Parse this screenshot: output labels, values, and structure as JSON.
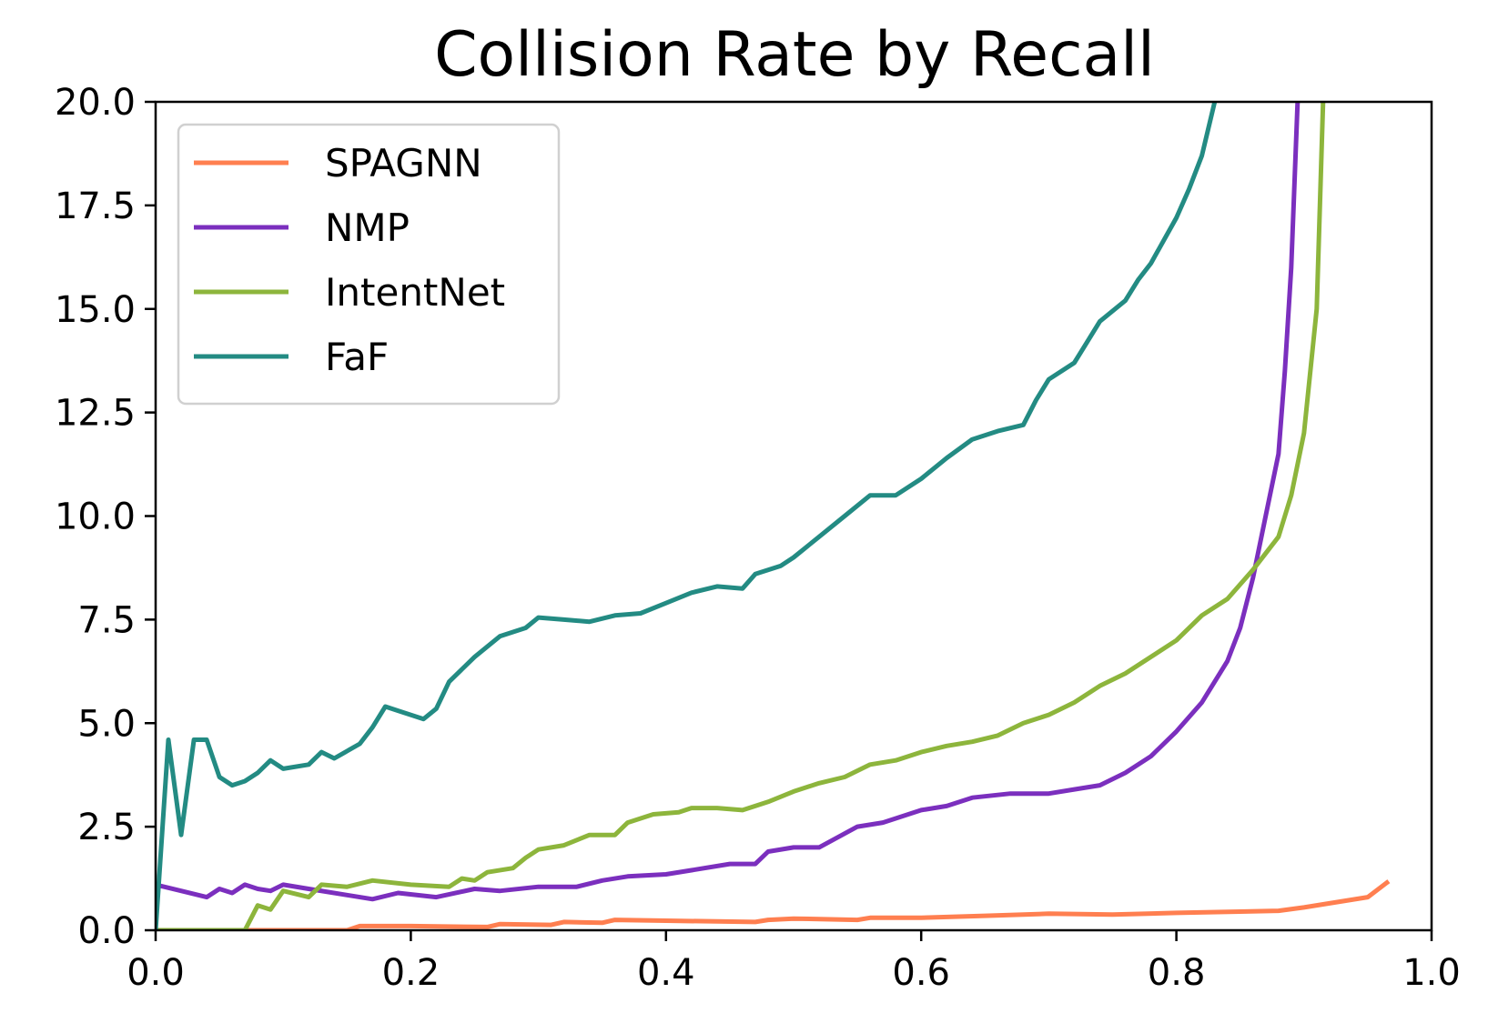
{
  "chart_data": {
    "type": "line",
    "title": "Collision Rate by Recall",
    "xlabel": "",
    "ylabel": "",
    "xlim": [
      0.0,
      1.0
    ],
    "ylim": [
      0.0,
      20.0
    ],
    "x_ticks": [
      0.0,
      0.2,
      0.4,
      0.6,
      0.8,
      1.0
    ],
    "x_tick_labels": [
      "0.0",
      "0.2",
      "0.4",
      "0.6",
      "0.8",
      "1.0"
    ],
    "y_ticks": [
      0.0,
      2.5,
      5.0,
      7.5,
      10.0,
      12.5,
      15.0,
      17.5,
      20.0
    ],
    "y_tick_labels": [
      "0.0",
      "2.5",
      "5.0",
      "7.5",
      "10.0",
      "12.5",
      "15.0",
      "17.5",
      "20.0"
    ],
    "grid": false,
    "legend_position": "top-left",
    "series": [
      {
        "name": "SPAGNN",
        "color": "#ff7f50",
        "points": [
          [
            0.0,
            0.0
          ],
          [
            0.15,
            0.0
          ],
          [
            0.16,
            0.1
          ],
          [
            0.2,
            0.1
          ],
          [
            0.26,
            0.08
          ],
          [
            0.27,
            0.15
          ],
          [
            0.31,
            0.13
          ],
          [
            0.32,
            0.2
          ],
          [
            0.35,
            0.18
          ],
          [
            0.36,
            0.25
          ],
          [
            0.4,
            0.23
          ],
          [
            0.47,
            0.2
          ],
          [
            0.48,
            0.25
          ],
          [
            0.5,
            0.28
          ],
          [
            0.55,
            0.25
          ],
          [
            0.56,
            0.3
          ],
          [
            0.6,
            0.3
          ],
          [
            0.65,
            0.35
          ],
          [
            0.7,
            0.4
          ],
          [
            0.75,
            0.38
          ],
          [
            0.8,
            0.42
          ],
          [
            0.85,
            0.45
          ],
          [
            0.88,
            0.47
          ],
          [
            0.9,
            0.55
          ],
          [
            0.92,
            0.65
          ],
          [
            0.95,
            0.8
          ],
          [
            0.965,
            1.15
          ]
        ]
      },
      {
        "name": "NMP",
        "color": "#7b2fbe",
        "points": [
          [
            0.0,
            1.1
          ],
          [
            0.02,
            0.95
          ],
          [
            0.04,
            0.8
          ],
          [
            0.05,
            1.0
          ],
          [
            0.06,
            0.9
          ],
          [
            0.07,
            1.1
          ],
          [
            0.08,
            1.0
          ],
          [
            0.09,
            0.95
          ],
          [
            0.1,
            1.1
          ],
          [
            0.12,
            1.0
          ],
          [
            0.15,
            0.85
          ],
          [
            0.17,
            0.75
          ],
          [
            0.19,
            0.9
          ],
          [
            0.22,
            0.8
          ],
          [
            0.25,
            1.0
          ],
          [
            0.27,
            0.95
          ],
          [
            0.3,
            1.05
          ],
          [
            0.33,
            1.05
          ],
          [
            0.35,
            1.2
          ],
          [
            0.37,
            1.3
          ],
          [
            0.4,
            1.35
          ],
          [
            0.42,
            1.45
          ],
          [
            0.45,
            1.6
          ],
          [
            0.47,
            1.6
          ],
          [
            0.48,
            1.9
          ],
          [
            0.5,
            2.0
          ],
          [
            0.52,
            2.0
          ],
          [
            0.55,
            2.5
          ],
          [
            0.57,
            2.6
          ],
          [
            0.6,
            2.9
          ],
          [
            0.62,
            3.0
          ],
          [
            0.64,
            3.2
          ],
          [
            0.67,
            3.3
          ],
          [
            0.7,
            3.3
          ],
          [
            0.72,
            3.4
          ],
          [
            0.74,
            3.5
          ],
          [
            0.76,
            3.8
          ],
          [
            0.78,
            4.2
          ],
          [
            0.8,
            4.8
          ],
          [
            0.82,
            5.5
          ],
          [
            0.84,
            6.5
          ],
          [
            0.85,
            7.3
          ],
          [
            0.86,
            8.5
          ],
          [
            0.87,
            10.0
          ],
          [
            0.88,
            11.5
          ],
          [
            0.885,
            13.5
          ],
          [
            0.89,
            16.0
          ],
          [
            0.895,
            20.0
          ]
        ]
      },
      {
        "name": "IntentNet",
        "color": "#8db53c",
        "points": [
          [
            0.0,
            0.0
          ],
          [
            0.07,
            0.0
          ],
          [
            0.08,
            0.6
          ],
          [
            0.09,
            0.5
          ],
          [
            0.1,
            0.95
          ],
          [
            0.12,
            0.8
          ],
          [
            0.13,
            1.1
          ],
          [
            0.15,
            1.05
          ],
          [
            0.17,
            1.2
          ],
          [
            0.2,
            1.1
          ],
          [
            0.23,
            1.05
          ],
          [
            0.24,
            1.25
          ],
          [
            0.25,
            1.2
          ],
          [
            0.26,
            1.4
          ],
          [
            0.28,
            1.5
          ],
          [
            0.29,
            1.75
          ],
          [
            0.3,
            1.95
          ],
          [
            0.32,
            2.05
          ],
          [
            0.34,
            2.3
          ],
          [
            0.36,
            2.3
          ],
          [
            0.37,
            2.6
          ],
          [
            0.39,
            2.8
          ],
          [
            0.41,
            2.85
          ],
          [
            0.42,
            2.95
          ],
          [
            0.44,
            2.95
          ],
          [
            0.46,
            2.9
          ],
          [
            0.48,
            3.1
          ],
          [
            0.5,
            3.35
          ],
          [
            0.52,
            3.55
          ],
          [
            0.54,
            3.7
          ],
          [
            0.56,
            4.0
          ],
          [
            0.58,
            4.1
          ],
          [
            0.6,
            4.3
          ],
          [
            0.62,
            4.45
          ],
          [
            0.64,
            4.55
          ],
          [
            0.66,
            4.7
          ],
          [
            0.68,
            5.0
          ],
          [
            0.7,
            5.2
          ],
          [
            0.72,
            5.5
          ],
          [
            0.74,
            5.9
          ],
          [
            0.76,
            6.2
          ],
          [
            0.78,
            6.6
          ],
          [
            0.8,
            7.0
          ],
          [
            0.82,
            7.6
          ],
          [
            0.84,
            8.0
          ],
          [
            0.86,
            8.7
          ],
          [
            0.88,
            9.5
          ],
          [
            0.89,
            10.5
          ],
          [
            0.9,
            12.0
          ],
          [
            0.91,
            15.0
          ],
          [
            0.915,
            20.0
          ]
        ]
      },
      {
        "name": "FaF",
        "color": "#238b83",
        "points": [
          [
            0.0,
            0.0
          ],
          [
            0.01,
            4.6
          ],
          [
            0.02,
            2.3
          ],
          [
            0.03,
            4.6
          ],
          [
            0.04,
            4.6
          ],
          [
            0.05,
            3.7
          ],
          [
            0.06,
            3.5
          ],
          [
            0.07,
            3.6
          ],
          [
            0.08,
            3.8
          ],
          [
            0.09,
            4.1
          ],
          [
            0.1,
            3.9
          ],
          [
            0.12,
            4.0
          ],
          [
            0.13,
            4.3
          ],
          [
            0.14,
            4.15
          ],
          [
            0.16,
            4.5
          ],
          [
            0.17,
            4.9
          ],
          [
            0.18,
            5.4
          ],
          [
            0.19,
            5.3
          ],
          [
            0.21,
            5.1
          ],
          [
            0.22,
            5.35
          ],
          [
            0.23,
            6.0
          ],
          [
            0.25,
            6.6
          ],
          [
            0.27,
            7.1
          ],
          [
            0.29,
            7.3
          ],
          [
            0.3,
            7.55
          ],
          [
            0.32,
            7.5
          ],
          [
            0.34,
            7.45
          ],
          [
            0.36,
            7.6
          ],
          [
            0.38,
            7.65
          ],
          [
            0.4,
            7.9
          ],
          [
            0.42,
            8.15
          ],
          [
            0.44,
            8.3
          ],
          [
            0.46,
            8.25
          ],
          [
            0.47,
            8.6
          ],
          [
            0.49,
            8.8
          ],
          [
            0.5,
            9.0
          ],
          [
            0.52,
            9.5
          ],
          [
            0.54,
            10.0
          ],
          [
            0.56,
            10.5
          ],
          [
            0.58,
            10.5
          ],
          [
            0.6,
            10.9
          ],
          [
            0.62,
            11.4
          ],
          [
            0.64,
            11.85
          ],
          [
            0.66,
            12.05
          ],
          [
            0.68,
            12.2
          ],
          [
            0.69,
            12.8
          ],
          [
            0.7,
            13.3
          ],
          [
            0.72,
            13.7
          ],
          [
            0.73,
            14.2
          ],
          [
            0.74,
            14.7
          ],
          [
            0.76,
            15.2
          ],
          [
            0.77,
            15.7
          ],
          [
            0.78,
            16.1
          ],
          [
            0.8,
            17.2
          ],
          [
            0.81,
            17.9
          ],
          [
            0.82,
            18.7
          ],
          [
            0.83,
            20.0
          ]
        ]
      }
    ]
  }
}
